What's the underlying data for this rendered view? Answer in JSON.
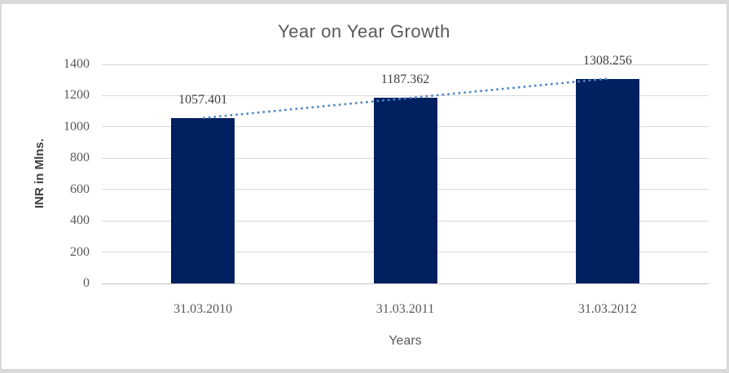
{
  "window": {
    "background": "#ffffff",
    "border_color": "#d9d9d9"
  },
  "chart_data": {
    "type": "bar",
    "title": "Year on Year Growth",
    "xlabel": "Years",
    "ylabel": "INR in Mlns.",
    "categories": [
      "31.03.2010",
      "31.03.2011",
      "31.03.2012"
    ],
    "values": [
      1057.401,
      1187.362,
      1308.256
    ],
    "data_labels": [
      "1057.401",
      "1187.362",
      "1308.256"
    ],
    "ylim": [
      0,
      1400
    ],
    "ytick_interval": 200,
    "yticks": [
      0,
      200,
      400,
      600,
      800,
      1000,
      1200,
      1400
    ],
    "grid": true,
    "legend": "none",
    "trendline": {
      "type": "linear",
      "style": "dotted",
      "color": "#4f87c5",
      "start_value": 1057.401,
      "end_value": 1308.256
    },
    "colors": {
      "bar": "#002060",
      "gridline": "#d9d9d9",
      "axis_line": "#c6c6c6",
      "title_text": "#595959",
      "tick_text": "#595959",
      "data_label_text": "#3f3f3f",
      "axis_title_text": "#3f3f3f",
      "trendline": "#4f87c5"
    }
  }
}
